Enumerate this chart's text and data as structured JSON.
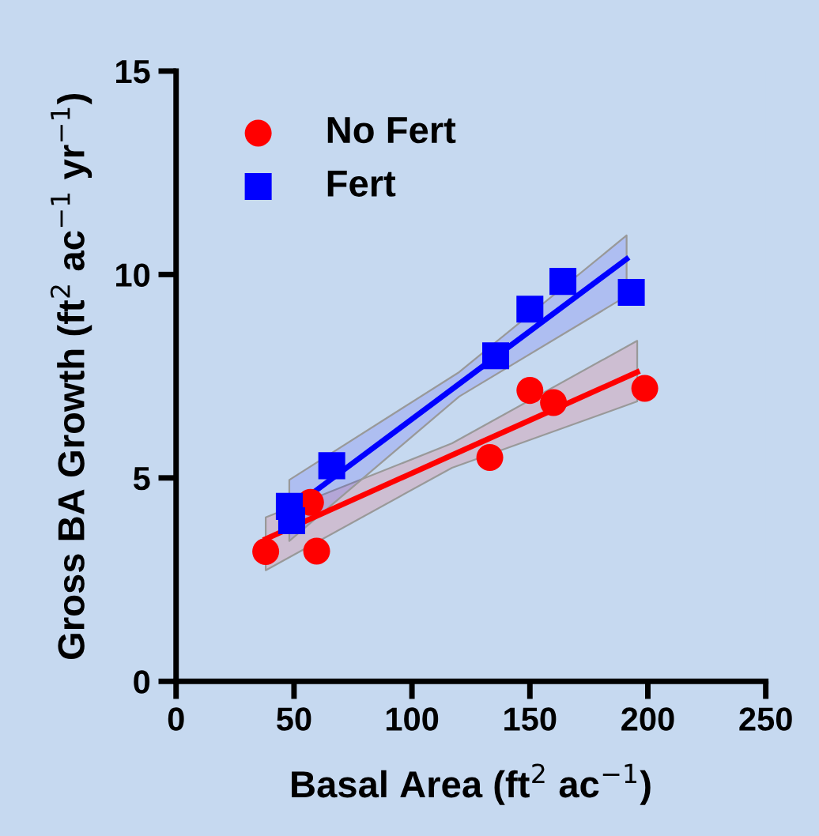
{
  "chart_data": {
    "type": "scatter",
    "xlabel": "Basal Area (ft$^{2}$ ac$^{−1}$)",
    "ylabel": "Gross BA Growth (ft$^{2}$ ac$^{−1}$ yr$^{−1}$)",
    "xlim": [
      0,
      250
    ],
    "ylim": [
      0,
      15
    ],
    "xticks": [
      0,
      50,
      100,
      150,
      200,
      250
    ],
    "yticks": [
      0,
      5,
      10,
      15
    ],
    "grid": false,
    "legend": "top left",
    "series": [
      {
        "name": "No Fert",
        "color": "#ff0000",
        "marker": "circle",
        "x": [
          38,
          46,
          57,
          59.6,
          133,
          150,
          160,
          198.7
        ],
        "values": [
          3.19,
          null,
          4.4,
          3.2,
          5.5,
          7.15,
          6.85,
          7.2
        ]
      },
      {
        "name": "Fert",
        "color": "#0000ff",
        "marker": "square",
        "x": [
          48,
          49,
          66,
          135.5,
          150,
          164,
          193
        ],
        "values": [
          4.3,
          3.95,
          5.3,
          8.0,
          9.15,
          9.83,
          9.56
        ]
      },
      {
        "type": "line",
        "color": "#ff0000",
        "x": [
          38,
          117,
          195.5
        ],
        "values": [
          3.5,
          5.56,
          7.6
        ],
        "lower": [
          2.73,
          5.25,
          6.88
        ],
        "upper": [
          4.03,
          5.85,
          8.37
        ]
      },
      {
        "type": "line",
        "color": "#0000ff",
        "x": [
          48,
          120,
          191
        ],
        "values": [
          4.2,
          7.31,
          10.38
        ],
        "lower": [
          3.45,
          7.0,
          9.47
        ],
        "upper": [
          4.95,
          7.6,
          10.96
        ]
      }
    ]
  }
}
